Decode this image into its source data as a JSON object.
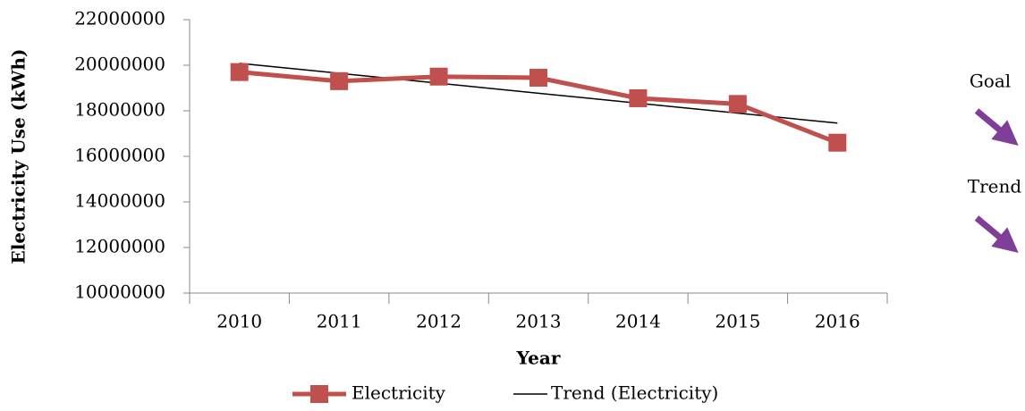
{
  "chart_data": {
    "type": "line",
    "x_label": "Year",
    "y_label": "Electricity Use (kWh)",
    "categories": [
      "2010",
      "2011",
      "2012",
      "2013",
      "2014",
      "2015",
      "2016"
    ],
    "series": [
      {
        "name": "Electricity",
        "color": "#c0504d",
        "marker": "square",
        "values": [
          19700000,
          19300000,
          19500000,
          19450000,
          18550000,
          18300000,
          16600000
        ]
      },
      {
        "name": "Trend (Electricity)",
        "color": "#000000",
        "values": [
          20084000,
          19646000,
          19209000,
          18771000,
          18334000,
          17896000,
          17459000
        ]
      }
    ],
    "ylim": [
      10000000,
      22000000
    ],
    "yticks": [
      10000000,
      12000000,
      14000000,
      16000000,
      18000000,
      20000000,
      22000000
    ],
    "grid": false,
    "legend": "bottom",
    "annotations": [
      "Goal",
      "Trend"
    ]
  }
}
